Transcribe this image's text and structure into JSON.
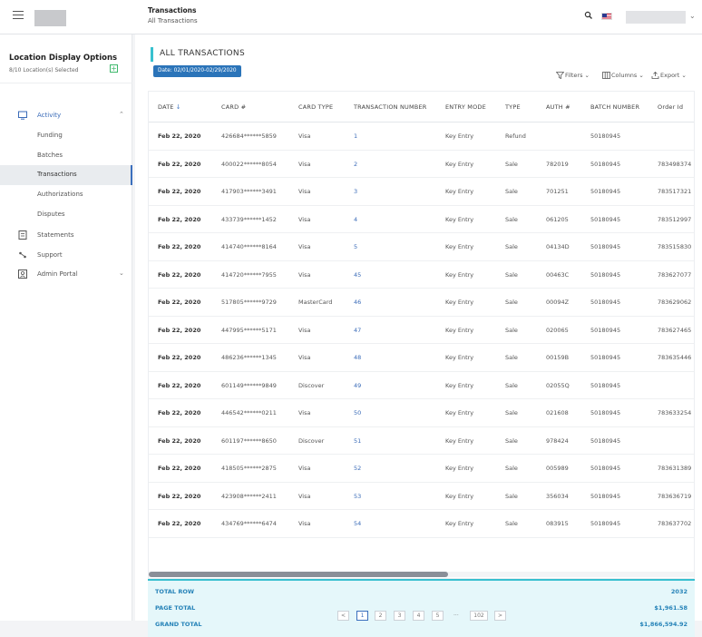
{
  "header": {
    "title": "Transactions",
    "subtitle": "All Transactions"
  },
  "sidebar": {
    "title": "Location Display Options",
    "subtitle": "8/10 Location(s) Selected",
    "add_label": "+",
    "items": [
      {
        "label": "Activity",
        "icon": "activity-icon"
      },
      {
        "label": "Funding"
      },
      {
        "label": "Batches"
      },
      {
        "label": "Transactions"
      },
      {
        "label": "Authorizations"
      },
      {
        "label": "Disputes"
      },
      {
        "label": "Statements",
        "icon": "statements-icon"
      },
      {
        "label": "Support",
        "icon": "support-icon"
      },
      {
        "label": "Admin Portal",
        "icon": "admin-icon"
      }
    ]
  },
  "main": {
    "section_title": "ALL TRANSACTIONS",
    "date_filter": "Date: 02/01/2020-02/29/2020",
    "toolbar": {
      "filters": "Filters",
      "columns": "Columns",
      "export": "Export"
    }
  },
  "table": {
    "columns": [
      "DATE",
      "CARD #",
      "CARD TYPE",
      "TRANSACTION NUMBER",
      "ENTRY MODE",
      "TYPE",
      "AUTH #",
      "BATCH NUMBER",
      "Order Id"
    ],
    "rows": [
      [
        "Feb 22, 2020",
        "426684******5859",
        "Visa",
        "1",
        "Key Entry",
        "Refund",
        "",
        "50180945",
        ""
      ],
      [
        "Feb 22, 2020",
        "400022******8054",
        "Visa",
        "2",
        "Key Entry",
        "Sale",
        "782019",
        "50180945",
        "783498374"
      ],
      [
        "Feb 22, 2020",
        "417903******3491",
        "Visa",
        "3",
        "Key Entry",
        "Sale",
        "701251",
        "50180945",
        "783517321"
      ],
      [
        "Feb 22, 2020",
        "433739******1452",
        "Visa",
        "4",
        "Key Entry",
        "Sale",
        "061205",
        "50180945",
        "783512997"
      ],
      [
        "Feb 22, 2020",
        "414740******8164",
        "Visa",
        "5",
        "Key Entry",
        "Sale",
        "04134D",
        "50180945",
        "783515830"
      ],
      [
        "Feb 22, 2020",
        "414720******7955",
        "Visa",
        "45",
        "Key Entry",
        "Sale",
        "00463C",
        "50180945",
        "783627077"
      ],
      [
        "Feb 22, 2020",
        "517805******9729",
        "MasterCard",
        "46",
        "Key Entry",
        "Sale",
        "00094Z",
        "50180945",
        "783629062"
      ],
      [
        "Feb 22, 2020",
        "447995******5171",
        "Visa",
        "47",
        "Key Entry",
        "Sale",
        "020065",
        "50180945",
        "783627465"
      ],
      [
        "Feb 22, 2020",
        "486236******1345",
        "Visa",
        "48",
        "Key Entry",
        "Sale",
        "00159B",
        "50180945",
        "783635446"
      ],
      [
        "Feb 22, 2020",
        "601149******9849",
        "Discover",
        "49",
        "Key Entry",
        "Sale",
        "02055Q",
        "50180945",
        ""
      ],
      [
        "Feb 22, 2020",
        "446542******0211",
        "Visa",
        "50",
        "Key Entry",
        "Sale",
        "021608",
        "50180945",
        "783633254"
      ],
      [
        "Feb 22, 2020",
        "601197******8650",
        "Discover",
        "51",
        "Key Entry",
        "Sale",
        "978424",
        "50180945",
        ""
      ],
      [
        "Feb 22, 2020",
        "418505******2875",
        "Visa",
        "52",
        "Key Entry",
        "Sale",
        "005989",
        "50180945",
        "783631389"
      ],
      [
        "Feb 22, 2020",
        "423908******2411",
        "Visa",
        "53",
        "Key Entry",
        "Sale",
        "356034",
        "50180945",
        "783636719"
      ],
      [
        "Feb 22, 2020",
        "434769******6474",
        "Visa",
        "54",
        "Key Entry",
        "Sale",
        "083915",
        "50180945",
        "783637702"
      ]
    ]
  },
  "totals": [
    {
      "label": "TOTAL ROW",
      "value": "2032"
    },
    {
      "label": "PAGE TOTAL",
      "value": "$1,961.58"
    },
    {
      "label": "GRAND TOTAL",
      "value": "$1,866,594.92"
    }
  ],
  "pagination": {
    "prev": "<",
    "pages": [
      "1",
      "2",
      "3",
      "4",
      "5"
    ],
    "ellipsis": "...",
    "last": "102",
    "next": ">",
    "current": "1"
  },
  "colors": {
    "accent": "#3b6fbd",
    "section_bar": "#38c1cf",
    "totals_bg": "#e5f7fa",
    "totals_text": "#2683b8",
    "date_chip": "#2b74b9"
  }
}
